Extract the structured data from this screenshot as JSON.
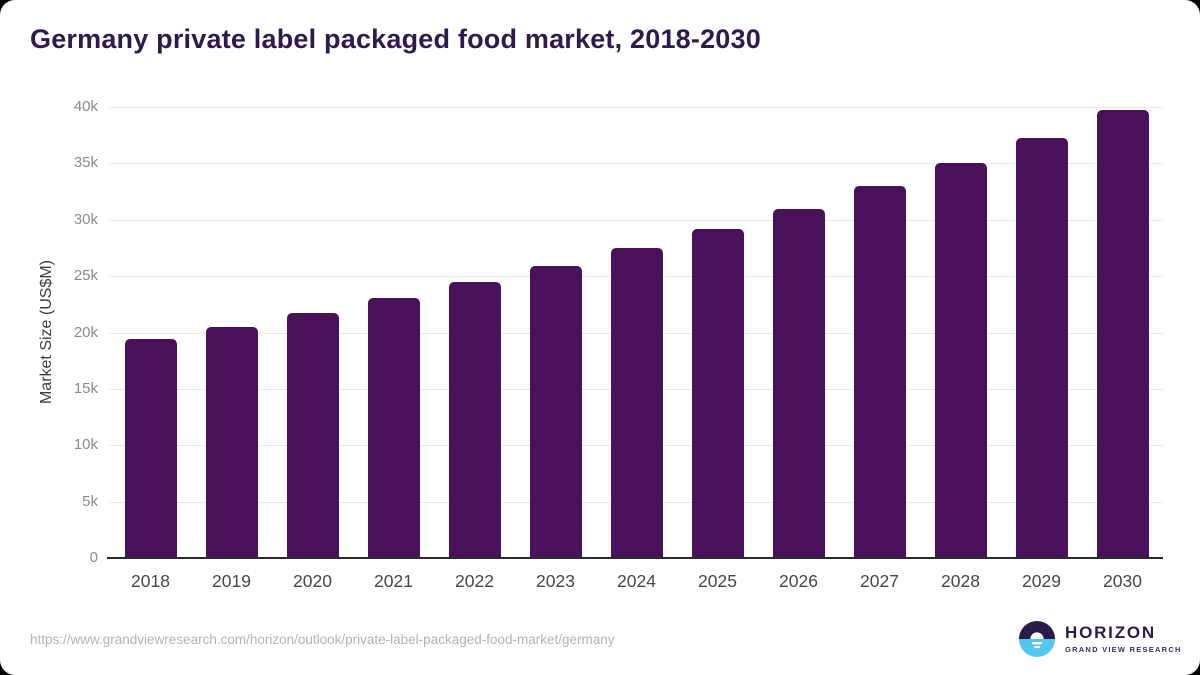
{
  "title": "Germany private label packaged food market, 2018-2030",
  "chart_data": {
    "type": "bar",
    "title": "Germany private label packaged food market, 2018-2030",
    "xlabel": "",
    "ylabel": "Market Size (US$M)",
    "categories": [
      "2018",
      "2019",
      "2020",
      "2021",
      "2022",
      "2023",
      "2024",
      "2025",
      "2026",
      "2027",
      "2028",
      "2029",
      "2030"
    ],
    "values": [
      19300,
      20400,
      21650,
      22950,
      24350,
      25800,
      27400,
      29100,
      30850,
      32950,
      34950,
      37150,
      39650
    ],
    "ylim": [
      0,
      40000
    ],
    "yticks": [
      {
        "label": "0",
        "value": 0
      },
      {
        "label": "5k",
        "value": 5000
      },
      {
        "label": "10k",
        "value": 10000
      },
      {
        "label": "15k",
        "value": 15000
      },
      {
        "label": "20k",
        "value": 20000
      },
      {
        "label": "25k",
        "value": 25000
      },
      {
        "label": "30k",
        "value": 30000
      },
      {
        "label": "35k",
        "value": 35000
      },
      {
        "label": "40k",
        "value": 40000
      }
    ],
    "grid": true,
    "legend": false,
    "bar_color": "#48115a"
  },
  "footer": {
    "source_url": "https://www.grandviewresearch.com/horizon/outlook/private-label-packaged-food-market/germany",
    "logo": {
      "name": "HORIZON",
      "subtitle": "GRAND VIEW RESEARCH"
    }
  },
  "colors": {
    "page_bg": "#000000",
    "card_bg": "#ffffff",
    "title": "#2f1a4d",
    "bar": "#48115a",
    "gridline": "#e8e8e8",
    "axis_line": "#2b2b2b",
    "y_tick": "#8a8a8a",
    "x_tick": "#474747",
    "source_text": "#b3b3b3",
    "logo_purple": "#2b1b47",
    "logo_blue": "#55c6f2"
  }
}
